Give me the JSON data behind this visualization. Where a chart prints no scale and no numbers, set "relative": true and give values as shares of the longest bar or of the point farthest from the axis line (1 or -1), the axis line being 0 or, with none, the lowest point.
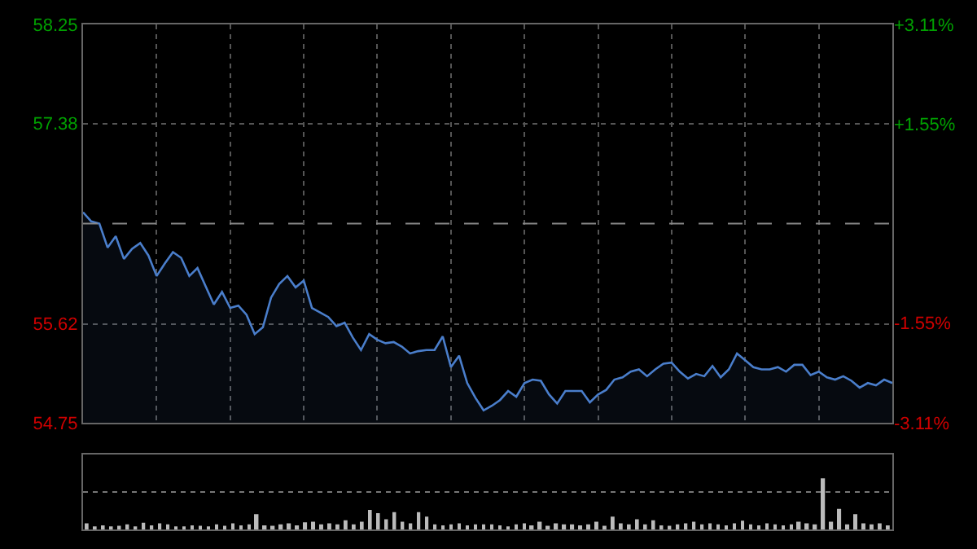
{
  "chart_data": [
    {
      "type": "area",
      "categories": [
        null,
        null,
        null,
        null,
        null,
        null,
        null,
        null,
        null,
        null,
        null,
        null,
        null,
        null,
        null,
        null,
        null,
        null,
        null,
        null,
        null,
        null,
        null,
        null,
        null,
        null,
        null,
        null,
        null,
        null,
        null,
        null,
        null,
        null,
        null,
        null,
        null,
        null,
        null,
        null,
        null,
        null,
        null,
        null,
        null,
        null,
        null,
        null,
        null,
        null,
        null,
        null,
        null,
        null,
        null,
        null,
        null,
        null,
        null,
        null,
        null,
        null,
        null,
        null,
        null,
        null,
        null,
        null,
        null,
        null,
        null,
        null,
        null,
        null,
        null,
        null,
        null,
        null,
        null,
        null,
        null,
        null,
        null,
        null,
        null,
        null,
        null,
        null,
        null,
        null,
        null,
        null,
        null,
        null,
        null,
        null,
        null,
        null,
        null,
        null
      ],
      "series": [
        {
          "color": "#4a7ecb",
          "values": [
            56.6,
            56.52,
            56.5,
            56.29,
            56.39,
            56.19,
            56.28,
            56.33,
            56.22,
            56.04,
            56.15,
            56.25,
            56.2,
            56.04,
            56.11,
            55.95,
            55.79,
            55.9,
            55.76,
            55.78,
            55.7,
            55.53,
            55.59,
            55.85,
            55.97,
            56.04,
            55.94,
            56.0,
            55.76,
            55.72,
            55.68,
            55.6,
            55.63,
            55.5,
            55.39,
            55.53,
            55.48,
            55.45,
            55.46,
            55.42,
            55.36,
            55.38,
            55.39,
            55.39,
            55.51,
            55.24,
            55.34,
            55.1,
            54.97,
            54.86,
            54.9,
            54.95,
            55.03,
            54.98,
            55.1,
            55.13,
            55.12,
            55.0,
            54.92,
            55.03,
            55.03,
            55.03,
            54.93,
            55.0,
            55.04,
            55.13,
            55.15,
            55.2,
            55.22,
            55.16,
            55.22,
            55.27,
            55.28,
            55.2,
            55.14,
            55.18,
            55.16,
            55.25,
            55.15,
            55.22,
            55.36,
            55.3,
            55.24,
            55.22,
            55.22,
            55.24,
            55.2,
            55.26,
            55.26,
            55.17,
            55.2,
            55.15,
            55.13,
            55.16,
            55.12,
            55.06,
            55.1,
            55.08,
            55.13,
            55.1
          ]
        }
      ],
      "ylim": [
        54.75,
        58.25
      ],
      "yticks": [
        58.25,
        57.38,
        55.62,
        54.75
      ],
      "y2lim": [
        -3.11,
        3.11
      ],
      "y2ticks": [
        {
          "value": 3.11,
          "label": "+3.11%"
        },
        {
          "value": 1.55,
          "label": "+1.55%"
        },
        {
          "value": -1.55,
          "label": "-1.55%"
        },
        {
          "value": -3.11,
          "label": "-3.11%"
        }
      ],
      "ref_lines": [
        {
          "axis": "y",
          "value": 56.5,
          "line_style": "dashed",
          "color": "#888888"
        }
      ],
      "grid": true,
      "legend": false
    },
    {
      "type": "bar",
      "relative": true,
      "categories": [
        null,
        null,
        null,
        null,
        null,
        null,
        null,
        null,
        null,
        null,
        null,
        null,
        null,
        null,
        null,
        null,
        null,
        null,
        null,
        null,
        null,
        null,
        null,
        null,
        null,
        null,
        null,
        null,
        null,
        null,
        null,
        null,
        null,
        null,
        null,
        null,
        null,
        null,
        null,
        null,
        null,
        null,
        null,
        null,
        null,
        null,
        null,
        null,
        null,
        null,
        null,
        null,
        null,
        null,
        null,
        null,
        null,
        null,
        null,
        null,
        null,
        null,
        null,
        null,
        null,
        null,
        null,
        null,
        null,
        null,
        null,
        null,
        null,
        null,
        null,
        null,
        null,
        null,
        null,
        null,
        null,
        null,
        null,
        null,
        null,
        null,
        null,
        null,
        null,
        null,
        null,
        null,
        null,
        null,
        null,
        null,
        null,
        null,
        null,
        null
      ],
      "series": [
        {
          "color": "#bbbbbb",
          "values": [
            0.12,
            0.06,
            0.08,
            0.05,
            0.07,
            0.1,
            0.06,
            0.13,
            0.08,
            0.12,
            0.1,
            0.06,
            0.05,
            0.08,
            0.07,
            0.06,
            0.1,
            0.07,
            0.12,
            0.08,
            0.1,
            0.3,
            0.08,
            0.07,
            0.1,
            0.12,
            0.08,
            0.14,
            0.15,
            0.1,
            0.12,
            0.1,
            0.18,
            0.1,
            0.15,
            0.38,
            0.32,
            0.2,
            0.34,
            0.15,
            0.12,
            0.34,
            0.25,
            0.1,
            0.08,
            0.1,
            0.12,
            0.08,
            0.1,
            0.1,
            0.1,
            0.08,
            0.06,
            0.1,
            0.12,
            0.08,
            0.15,
            0.07,
            0.12,
            0.1,
            0.1,
            0.08,
            0.1,
            0.15,
            0.07,
            0.25,
            0.12,
            0.1,
            0.2,
            0.1,
            0.18,
            0.08,
            0.07,
            0.1,
            0.12,
            0.15,
            0.1,
            0.12,
            0.1,
            0.08,
            0.12,
            0.17,
            0.1,
            0.08,
            0.12,
            0.1,
            0.08,
            0.1,
            0.15,
            0.12,
            0.1,
            1.0,
            0.15,
            0.4,
            0.1,
            0.3,
            0.12,
            0.1,
            0.12,
            0.08
          ]
        }
      ],
      "ref_lines": [
        {
          "axis": "y",
          "value": 0.73,
          "line_style": "dotted",
          "color": "#777777"
        }
      ],
      "legend": false
    }
  ]
}
